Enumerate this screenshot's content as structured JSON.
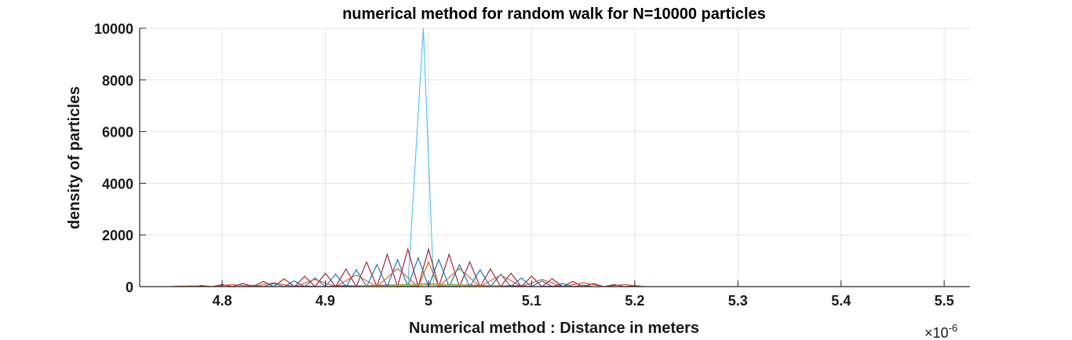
{
  "chart_data": {
    "type": "line",
    "title": "numerical method for random walk for N=10000 particles",
    "xlabel": "Numerical method : Distance in meters",
    "ylabel": "density of particles",
    "x_multiplier_label": "×10",
    "x_multiplier_exponent": "-6",
    "xlim": [
      4.72,
      5.525
    ],
    "ylim": [
      0,
      10000
    ],
    "x_ticks": [
      4.8,
      4.9,
      5.0,
      5.1,
      5.2,
      5.3,
      5.4,
      5.5
    ],
    "x_tick_labels": [
      "4.8",
      "4.9",
      "5",
      "5.1",
      "5.2",
      "5.3",
      "5.4",
      "5.5"
    ],
    "y_ticks": [
      0,
      2000,
      4000,
      6000,
      8000,
      10000
    ],
    "y_tick_labels": [
      "0",
      "2000",
      "4000",
      "6000",
      "8000",
      "10000"
    ],
    "grid": true,
    "series": [
      {
        "color": "#4dbeee",
        "x": [
          4.72,
          4.98,
          4.995,
          5.005,
          5.03,
          5.525
        ],
        "y": [
          0,
          0,
          10000,
          0,
          0,
          0
        ]
      },
      {
        "color": "#a2142f",
        "x": [
          4.72,
          4.74,
          4.75,
          4.76,
          4.77,
          4.78,
          4.79,
          4.8,
          4.81,
          4.82,
          4.83,
          4.84,
          4.85,
          4.86,
          4.87,
          4.88,
          4.89,
          4.9,
          4.91,
          4.92,
          4.93,
          4.94,
          4.95,
          4.96,
          4.97,
          4.98,
          4.99,
          5.0,
          5.01,
          5.02,
          5.03,
          5.04,
          5.05,
          5.06,
          5.07,
          5.08,
          5.09,
          5.1,
          5.11,
          5.12,
          5.13,
          5.14,
          5.15,
          5.16,
          5.17,
          5.18,
          5.19,
          5.2,
          5.21,
          5.525
        ],
        "y": [
          0,
          0,
          0,
          20,
          0,
          40,
          0,
          80,
          0,
          120,
          0,
          200,
          0,
          300,
          0,
          400,
          0,
          520,
          0,
          680,
          0,
          950,
          0,
          1250,
          0,
          1450,
          0,
          1450,
          0,
          1250,
          0,
          950,
          0,
          680,
          0,
          520,
          0,
          400,
          0,
          300,
          0,
          200,
          0,
          120,
          0,
          80,
          0,
          40,
          0,
          0
        ]
      },
      {
        "color": "#0072bd",
        "x": [
          4.72,
          4.82,
          4.83,
          4.84,
          4.85,
          4.86,
          4.87,
          4.88,
          4.89,
          4.9,
          4.91,
          4.92,
          4.93,
          4.94,
          4.95,
          4.96,
          4.97,
          4.98,
          4.99,
          5.0,
          5.01,
          5.02,
          5.03,
          5.04,
          5.05,
          5.06,
          5.07,
          5.08,
          5.09,
          5.1,
          5.11,
          5.12,
          5.13,
          5.14,
          5.15,
          5.16,
          5.17,
          5.525
        ],
        "y": [
          0,
          0,
          60,
          0,
          120,
          0,
          220,
          0,
          330,
          0,
          480,
          0,
          650,
          0,
          850,
          0,
          1050,
          0,
          1120,
          0,
          1050,
          0,
          850,
          0,
          650,
          0,
          480,
          0,
          330,
          0,
          220,
          0,
          120,
          0,
          60,
          0,
          0,
          0
        ]
      },
      {
        "color": "#d95319",
        "x": [
          4.72,
          4.75,
          4.77,
          4.79,
          4.81,
          4.83,
          4.85,
          4.87,
          4.89,
          4.91,
          4.93,
          4.95,
          4.97,
          4.99,
          5.0,
          5.01,
          5.03,
          5.05,
          5.07,
          5.09,
          5.11,
          5.13,
          5.15,
          5.17,
          5.19,
          5.21,
          5.23,
          5.525
        ],
        "y": [
          0,
          0,
          30,
          0,
          80,
          0,
          150,
          0,
          280,
          0,
          450,
          0,
          700,
          0,
          950,
          0,
          700,
          0,
          450,
          0,
          280,
          0,
          150,
          0,
          80,
          0,
          0,
          0
        ]
      },
      {
        "color": "#77ac30",
        "x": [
          4.72,
          4.9,
          4.94,
          4.98,
          5.0,
          5.02,
          5.06,
          5.1,
          5.525
        ],
        "y": [
          0,
          0,
          40,
          80,
          120,
          80,
          40,
          0,
          0
        ]
      },
      {
        "color": "#7e2f8e",
        "x": [
          4.72,
          4.86,
          4.88,
          4.9,
          4.92,
          4.94,
          4.96,
          4.98,
          5.0,
          5.02,
          5.04,
          5.06,
          5.08,
          5.1,
          5.12,
          5.14,
          5.525
        ],
        "y": [
          0,
          0,
          20,
          0,
          40,
          0,
          60,
          0,
          80,
          0,
          60,
          0,
          40,
          0,
          20,
          0,
          0
        ]
      },
      {
        "color": "#edb120",
        "x": [
          4.72,
          4.92,
          4.96,
          5.0,
          5.04,
          5.08,
          5.525
        ],
        "y": [
          0,
          0,
          30,
          60,
          30,
          0,
          0
        ]
      },
      {
        "color": "#000000",
        "x": [
          4.72,
          5.525
        ],
        "y": [
          0,
          0
        ]
      }
    ]
  }
}
